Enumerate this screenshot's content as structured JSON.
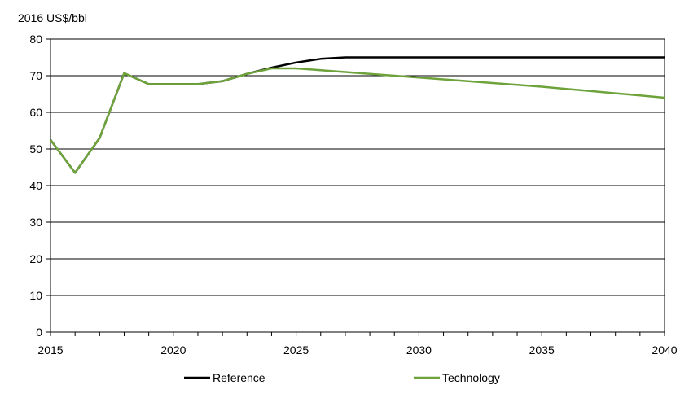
{
  "chart_data": {
    "type": "line",
    "title": "",
    "ylabel": "2016 US$/bbl",
    "xlabel": "",
    "xlim": [
      2015,
      2040
    ],
    "ylim": [
      0,
      80
    ],
    "x_ticks": [
      2015,
      2020,
      2025,
      2030,
      2035,
      2040
    ],
    "y_ticks": [
      0,
      10,
      20,
      30,
      40,
      50,
      60,
      70,
      80
    ],
    "grid": "horizontal",
    "legend_position": "bottom",
    "series": [
      {
        "name": "Reference",
        "color": "#000000",
        "points": [
          [
            2015,
            52.5
          ],
          [
            2016,
            43.5
          ],
          [
            2017,
            53
          ],
          [
            2018,
            70.7
          ],
          [
            2019,
            67.7
          ],
          [
            2020,
            67.7
          ],
          [
            2021,
            67.7
          ],
          [
            2022,
            68.5
          ],
          [
            2023,
            70.5
          ],
          [
            2024,
            72.2
          ],
          [
            2025,
            73.6
          ],
          [
            2026,
            74.6
          ],
          [
            2027,
            75
          ],
          [
            2028,
            75
          ],
          [
            2029,
            75
          ],
          [
            2030,
            75
          ],
          [
            2031,
            75
          ],
          [
            2032,
            75
          ],
          [
            2033,
            75
          ],
          [
            2034,
            75
          ],
          [
            2035,
            75
          ],
          [
            2036,
            75
          ],
          [
            2037,
            75
          ],
          [
            2038,
            75
          ],
          [
            2039,
            75
          ],
          [
            2040,
            75
          ]
        ]
      },
      {
        "name": "Technology",
        "color": "#6ea33b",
        "points": [
          [
            2015,
            52.5
          ],
          [
            2016,
            43.5
          ],
          [
            2017,
            53
          ],
          [
            2018,
            70.7
          ],
          [
            2019,
            67.7
          ],
          [
            2020,
            67.7
          ],
          [
            2021,
            67.7
          ],
          [
            2022,
            68.5
          ],
          [
            2023,
            70.5
          ],
          [
            2024,
            72
          ],
          [
            2025,
            72
          ],
          [
            2026,
            71.5
          ],
          [
            2027,
            71
          ],
          [
            2028,
            70.5
          ],
          [
            2029,
            70
          ],
          [
            2030,
            69.5
          ],
          [
            2031,
            69
          ],
          [
            2032,
            68.5
          ],
          [
            2033,
            68
          ],
          [
            2034,
            67.5
          ],
          [
            2035,
            67
          ],
          [
            2036,
            66.4
          ],
          [
            2037,
            65.8
          ],
          [
            2038,
            65.2
          ],
          [
            2039,
            64.6
          ],
          [
            2040,
            64
          ]
        ]
      }
    ]
  }
}
